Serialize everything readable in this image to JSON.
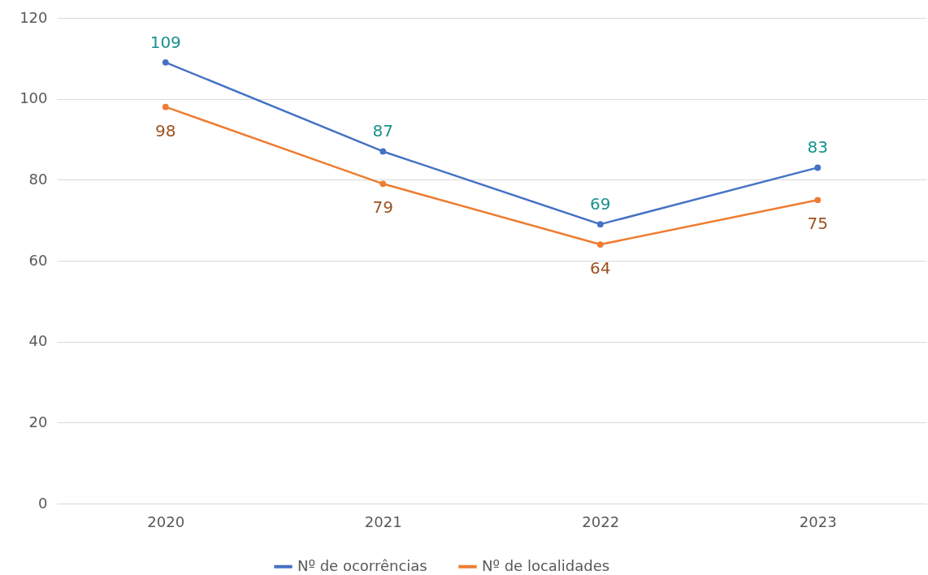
{
  "chart_data": {
    "type": "line",
    "categories": [
      "2020",
      "2021",
      "2022",
      "2023"
    ],
    "series": [
      {
        "name": "Nº de ocorrências",
        "color": "#4472c4",
        "values": [
          109,
          87,
          69,
          83
        ]
      },
      {
        "name": "Nº de localidades",
        "color": "#ed7d31",
        "values": [
          98,
          79,
          64,
          75
        ]
      }
    ],
    "ylim": [
      0,
      120
    ],
    "yticks": [
      0,
      20,
      40,
      60,
      80,
      100,
      120
    ],
    "grid": "y",
    "legend": "bottom",
    "marker": "circle",
    "line_style": "solid",
    "data_labels": true
  }
}
